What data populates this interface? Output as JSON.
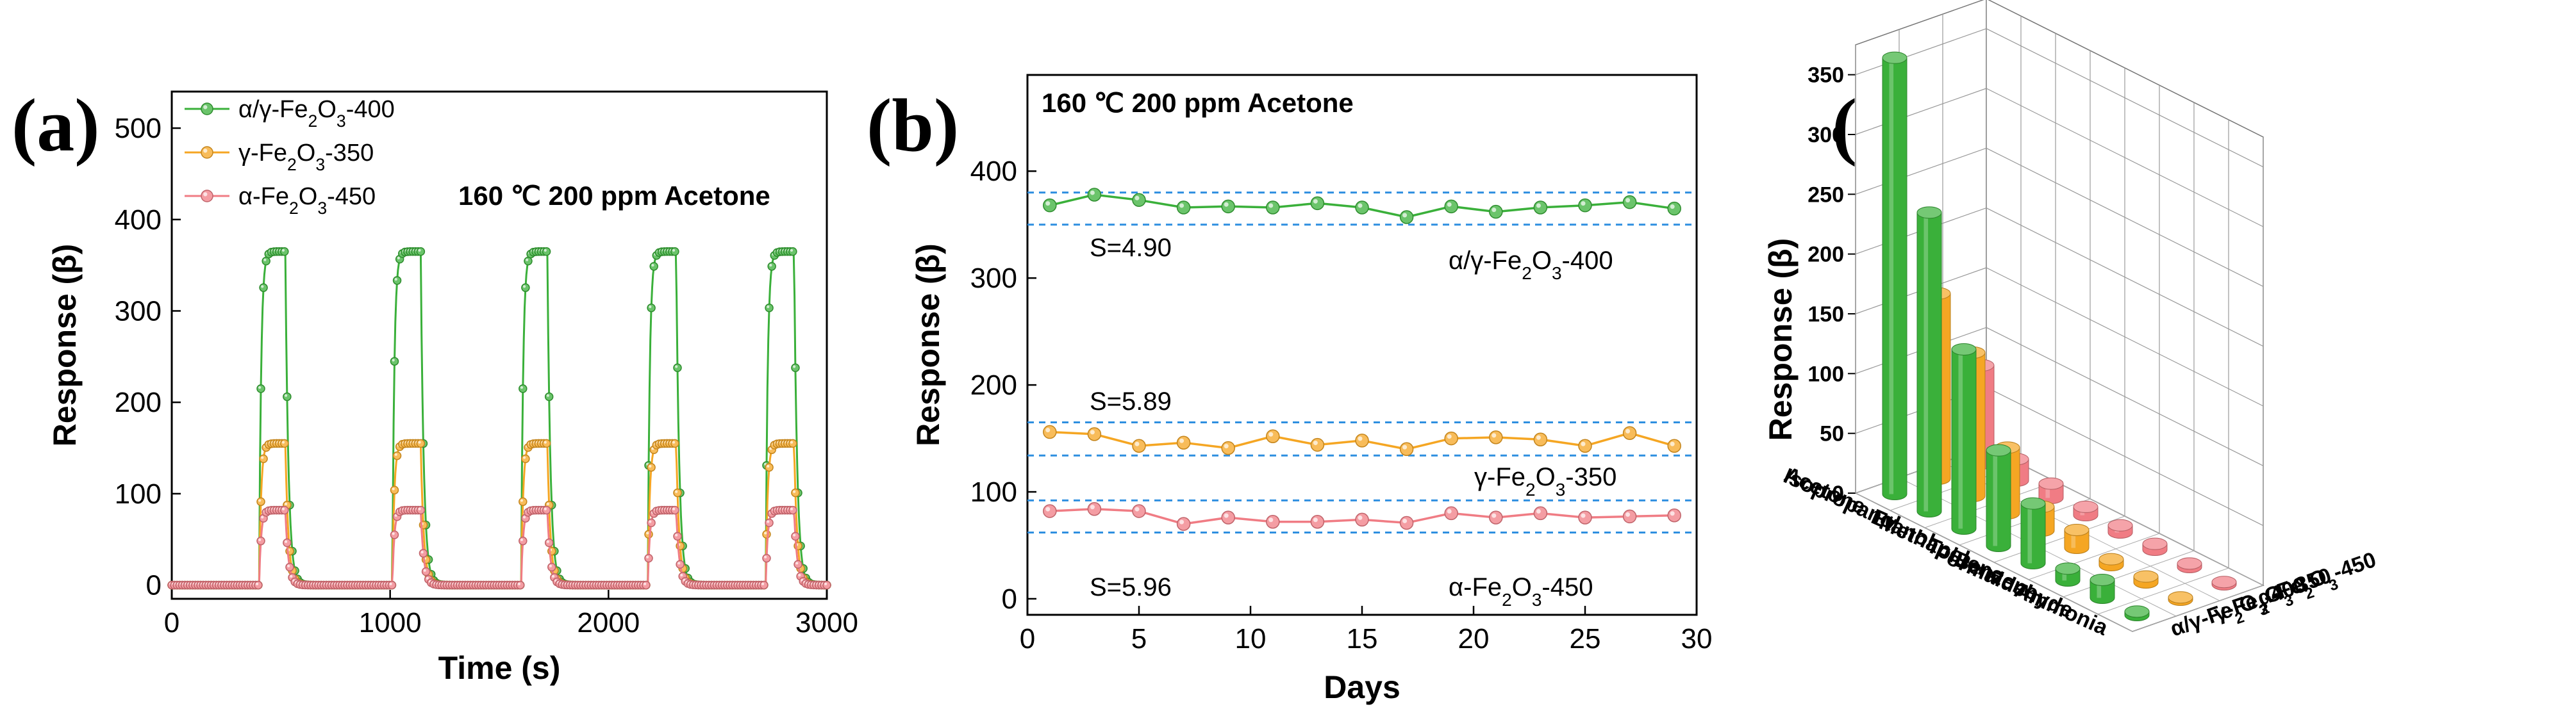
{
  "colors": {
    "green": "#3ab03a",
    "orange": "#f5a623",
    "red": "#f07c84",
    "dash": "#2e8fe0"
  },
  "chart_data": [
    {
      "panel": "(a)",
      "type": "line",
      "condition": "160 ℃  200 ppm  Acetone",
      "xlabel": "Time (s)",
      "ylabel": "Response (β)",
      "xlim": [
        0,
        3000
      ],
      "ylim": [
        -15,
        540
      ],
      "xticks": [
        0,
        1000,
        2000,
        3000
      ],
      "yticks": [
        0,
        100,
        200,
        300,
        400,
        500
      ],
      "cycles": [
        {
          "on": 400,
          "off": 520
        },
        {
          "on": 1010,
          "off": 1140
        },
        {
          "on": 1600,
          "off": 1720
        },
        {
          "on": 2180,
          "off": 2310
        },
        {
          "on": 2720,
          "off": 2850
        }
      ],
      "series": [
        {
          "name_prefix": "α/γ-Fe",
          "name_sub1": "2",
          "name_mid": "O",
          "name_sub2": "3",
          "name_suffix": "-400",
          "peak": 365,
          "color": "#3ab03a"
        },
        {
          "name_prefix": "γ-Fe",
          "name_sub1": "2",
          "name_mid": "O",
          "name_sub2": "3",
          "name_suffix": "-350",
          "peak": 155,
          "color": "#f5a623"
        },
        {
          "name_prefix": "α-Fe",
          "name_sub1": "2",
          "name_mid": "O",
          "name_sub2": "3",
          "name_suffix": "-450",
          "peak": 82,
          "color": "#f07c84"
        }
      ]
    },
    {
      "panel": "(b)",
      "type": "line",
      "condition": "160 ℃  200 ppm  Acetone",
      "xlabel": "Days",
      "ylabel": "Response (β)",
      "xlim": [
        0,
        30
      ],
      "ylim": [
        -15,
        490
      ],
      "xticks": [
        0,
        5,
        10,
        15,
        20,
        25,
        30
      ],
      "yticks": [
        0,
        100,
        200,
        300,
        400
      ],
      "x": [
        1,
        3,
        5,
        7,
        9,
        11,
        13,
        15,
        17,
        19,
        21,
        23,
        25,
        27,
        29
      ],
      "series": [
        {
          "name_prefix": "α/γ-Fe",
          "name_sub1": "2",
          "name_mid": "O",
          "name_sub2": "3",
          "name_suffix": "-400",
          "color": "#3ab03a",
          "values": [
            368,
            378,
            373,
            366,
            367,
            366,
            370,
            366,
            357,
            367,
            362,
            366,
            368,
            371,
            365
          ],
          "band": [
            350,
            380
          ],
          "s_label": "S=4.90"
        },
        {
          "name_prefix": "γ-Fe",
          "name_sub1": "2",
          "name_mid": "O",
          "name_sub2": "3",
          "name_suffix": "-350",
          "color": "#f5a623",
          "values": [
            156,
            154,
            143,
            146,
            141,
            152,
            144,
            148,
            140,
            150,
            151,
            149,
            143,
            155,
            143
          ],
          "band": [
            134,
            165
          ],
          "s_label": "S=5.89"
        },
        {
          "name_prefix": "α-Fe",
          "name_sub1": "2",
          "name_mid": "O",
          "name_sub2": "3",
          "name_suffix": "-450",
          "color": "#f07c84",
          "values": [
            82,
            84,
            82,
            70,
            76,
            72,
            72,
            74,
            71,
            80,
            76,
            80,
            76,
            77,
            78
          ],
          "band": [
            62,
            92
          ],
          "s_label": "S=5.96"
        }
      ]
    },
    {
      "panel": "(c)",
      "type": "bar",
      "bar3d": true,
      "zlabel": "Response (β)",
      "zlim": [
        0,
        375
      ],
      "zticks": [
        0,
        50,
        100,
        150,
        200,
        250,
        300,
        350
      ],
      "categories": [
        "Acetone",
        "Isopropanol",
        "Etanol",
        "Methanol",
        "Toluene",
        "Benzene",
        "Formaldehyde",
        "Ammonia"
      ],
      "series": [
        {
          "name_prefix": "α/γ-Fe",
          "name_sub1": "2",
          "name_mid": "O",
          "name_sub2": "3",
          "name_suffix": "-400",
          "color": "#3ab03a",
          "values": [
            365,
            250,
            150,
            80,
            50,
            10,
            15,
            3
          ]
        },
        {
          "name_prefix": "γ-Fe",
          "name_sub1": "2",
          "name_mid": "O",
          "name_sub2": "3",
          "name_suffix": "-350",
          "color": "#f5a623",
          "values": [
            155,
            120,
            55,
            20,
            15,
            5,
            5,
            2
          ]
        },
        {
          "name_prefix": "α-Fe",
          "name_sub1": "2",
          "name_mid": "O",
          "name_sub2": "3",
          "name_suffix": "-450",
          "color": "#f07c84",
          "values": [
            82,
            18,
            12,
            7,
            6,
            5,
            3,
            2
          ]
        }
      ]
    }
  ]
}
